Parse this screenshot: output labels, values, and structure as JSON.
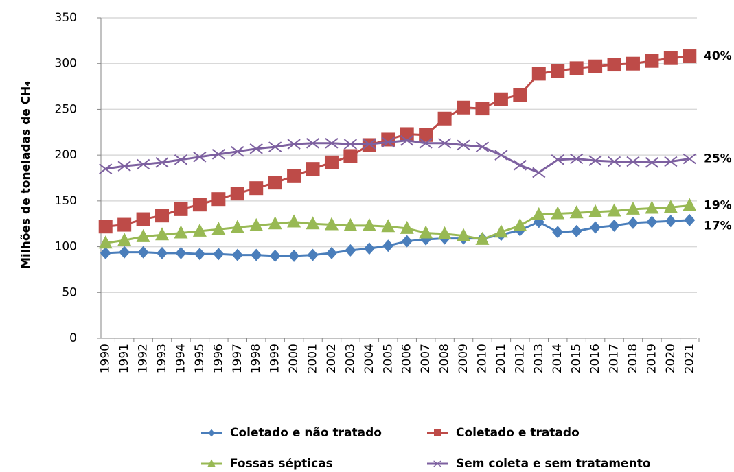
{
  "chart_data": {
    "type": "line",
    "y_label": "Milhões de toneladas de CH₄",
    "categories": [
      "1990",
      "1991",
      "1992",
      "1993",
      "1994",
      "1995",
      "1996",
      "1997",
      "1998",
      "1999",
      "2000",
      "2001",
      "2002",
      "2003",
      "2004",
      "2005",
      "2006",
      "2007",
      "2008",
      "2009",
      "2010",
      "2011",
      "2012",
      "2013",
      "2014",
      "2015",
      "2016",
      "2017",
      "2018",
      "2019",
      "2020",
      "2021"
    ],
    "ylim": [
      0,
      350
    ],
    "yticks": [
      0,
      50,
      100,
      150,
      200,
      250,
      300,
      350
    ],
    "grid": true,
    "series": [
      {
        "name": "Coletado e não tratado",
        "color": "#4a7ebb",
        "marker": "diamond",
        "end_label": "17%",
        "values": [
          93,
          94,
          94,
          93,
          93,
          92,
          92,
          91,
          91,
          90,
          90,
          91,
          93,
          96,
          98,
          101,
          106,
          108,
          109,
          109,
          109,
          113,
          118,
          127,
          116,
          117,
          121,
          123,
          126,
          127,
          128,
          129
        ]
      },
      {
        "name": "Coletado e tratado",
        "color": "#be4b48",
        "marker": "square",
        "end_label": "40%",
        "values": [
          122,
          124,
          130,
          134,
          141,
          146,
          152,
          158,
          164,
          170,
          177,
          185,
          192,
          199,
          211,
          217,
          223,
          222,
          240,
          252,
          251,
          261,
          266,
          289,
          292,
          295,
          297,
          299,
          300,
          303,
          306,
          308
        ]
      },
      {
        "name": "Fossas sépticas",
        "color": "#98b954",
        "marker": "triangle",
        "end_label": "19%",
        "values": [
          104,
          107,
          111,
          113,
          115,
          117,
          119,
          121,
          123,
          125,
          127,
          125,
          124,
          123,
          123,
          122,
          120,
          115,
          114,
          112,
          108,
          116,
          123,
          135,
          136,
          137,
          138,
          139,
          141,
          142,
          143,
          145
        ]
      },
      {
        "name": "Sem coleta e sem tratamento",
        "color": "#7d60a0",
        "marker": "x",
        "end_label": "25%",
        "values": [
          185,
          188,
          190,
          192,
          195,
          198,
          201,
          204,
          207,
          209,
          212,
          213,
          213,
          212,
          212,
          214,
          216,
          213,
          213,
          211,
          209,
          200,
          189,
          181,
          195,
          196,
          194,
          193,
          193,
          192,
          193,
          196
        ]
      }
    ]
  }
}
